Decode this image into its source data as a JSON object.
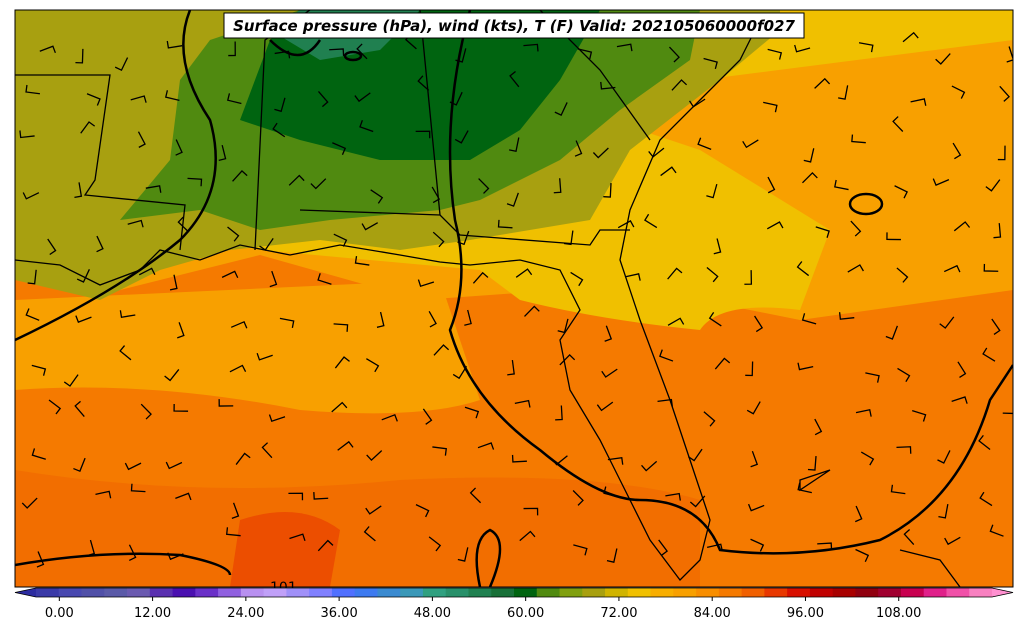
{
  "title": "Surface pressure (hPa), wind (kts), T (F) Valid: 202105060000f027",
  "contour_label": "101",
  "colorbar": {
    "min": -3,
    "max": 120,
    "colors": [
      "#2c2ca0",
      "#3a3aa8",
      "#4848b0",
      "#5050a8",
      "#5a5aa8",
      "#6a5ab0",
      "#5a30b0",
      "#4a10b0",
      "#6a30c8",
      "#9060e0",
      "#b890f0",
      "#c0a0f8",
      "#a090f8",
      "#8080ff",
      "#5070ff",
      "#3d7af0",
      "#3a8ad0",
      "#3a98b8",
      "#30a080",
      "#28906a",
      "#208050",
      "#187038",
      "#006410",
      "#508a10",
      "#80a010",
      "#a8a010",
      "#d0b400",
      "#f0c000",
      "#f8ae00",
      "#f8a000",
      "#f88e00",
      "#f57a00",
      "#f06000",
      "#e83800",
      "#d81000",
      "#c00000",
      "#a80000",
      "#900010",
      "#a00030",
      "#c80050",
      "#e0208a",
      "#f050a8",
      "#f880c0",
      "#ff90d0"
    ],
    "ticks": [
      {
        "value": 0,
        "label": "0.00"
      },
      {
        "value": 12,
        "label": "12.00"
      },
      {
        "value": 24,
        "label": "24.00"
      },
      {
        "value": 36,
        "label": "36.00"
      },
      {
        "value": 48,
        "label": "48.00"
      },
      {
        "value": 60,
        "label": "60.00"
      },
      {
        "value": 72,
        "label": "72.00"
      },
      {
        "value": 84,
        "label": "84.00"
      },
      {
        "value": 96,
        "label": "96.00"
      },
      {
        "value": 108,
        "label": "108.00"
      }
    ]
  }
}
